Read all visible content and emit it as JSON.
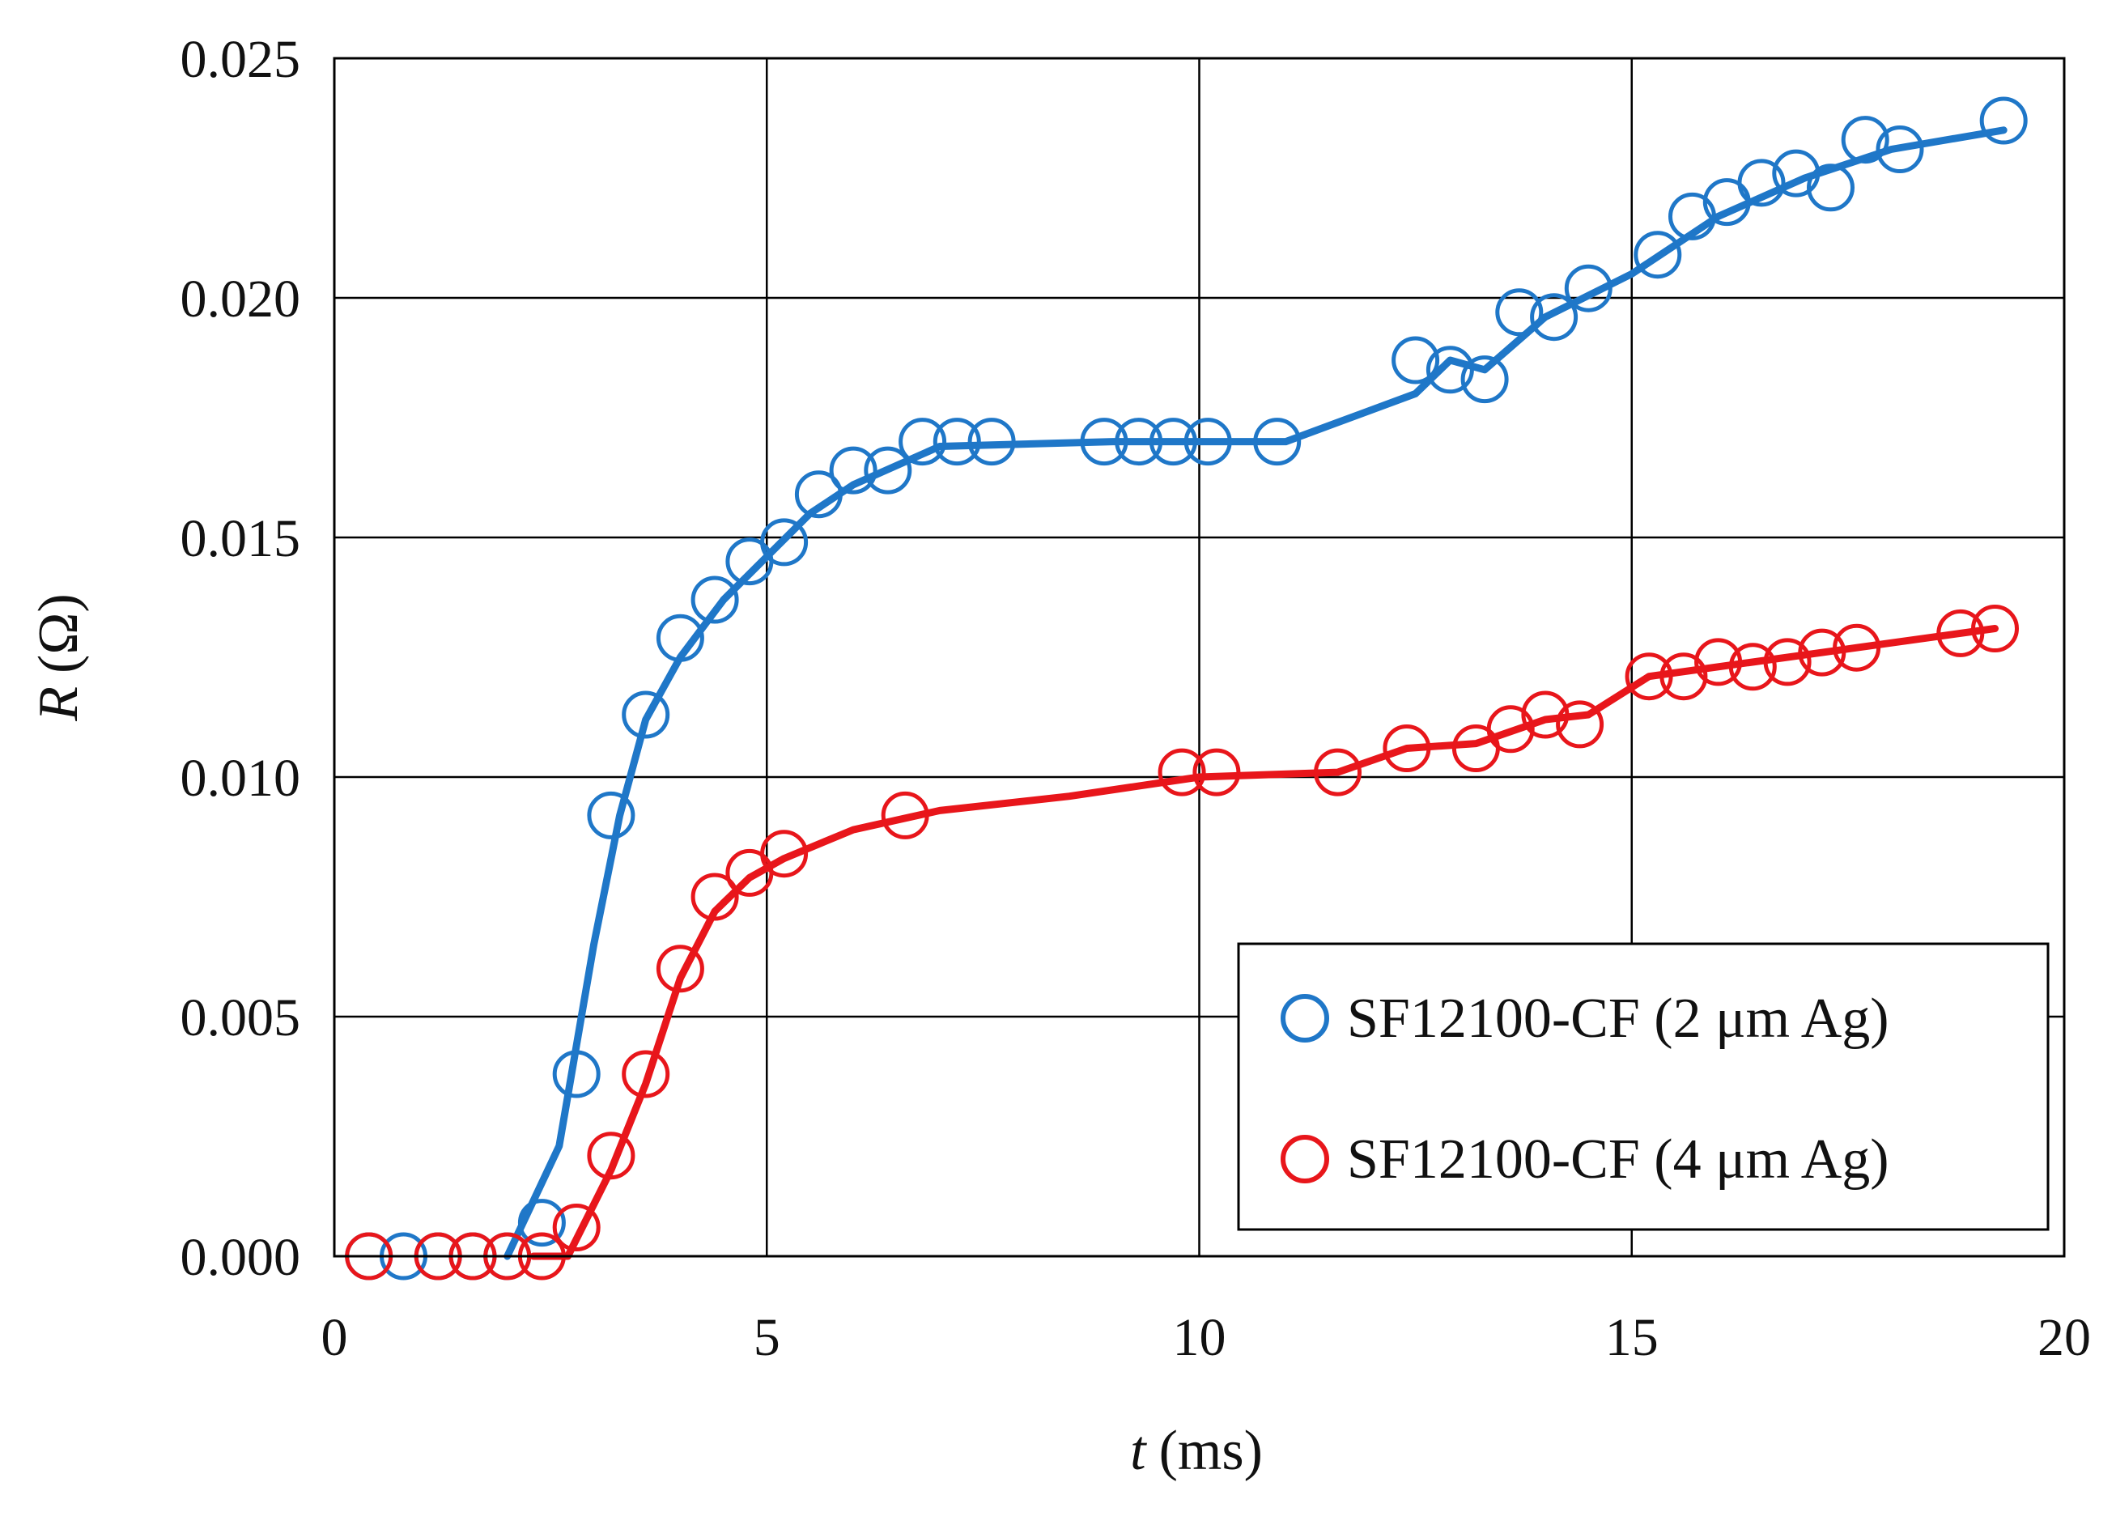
{
  "chart_data": {
    "type": "scatter",
    "title": "",
    "xlabel": {
      "var": "t",
      "unit": "(ms)"
    },
    "ylabel": {
      "var": "R",
      "unit": "(Ω)"
    },
    "xlim": [
      0,
      20
    ],
    "ylim": [
      0,
      0.025
    ],
    "x_ticks": [
      "0",
      "5",
      "10",
      "15",
      "20"
    ],
    "y_ticks": [
      "0.000",
      "0.005",
      "0.010",
      "0.015",
      "0.020",
      "0.025"
    ],
    "grid": true,
    "legend_position": "bottom-right",
    "series": [
      {
        "name": "SF12100-CF (2 μm Ag)",
        "color": "#1f77c8",
        "x": [
          0.4,
          0.8,
          1.2,
          1.6,
          2.0,
          2.4,
          2.8,
          3.2,
          3.6,
          4.0,
          4.4,
          4.8,
          5.2,
          5.6,
          6.0,
          6.4,
          6.8,
          7.2,
          7.6,
          8.9,
          9.3,
          9.7,
          10.1,
          10.9,
          12.5,
          12.9,
          13.3,
          13.7,
          14.1,
          14.5,
          15.3,
          15.7,
          16.1,
          16.5,
          16.9,
          17.3,
          17.7,
          18.1,
          19.3
        ],
        "y": [
          0.0,
          0.0,
          0.0,
          0.0,
          0.0,
          0.0007,
          0.0038,
          0.0092,
          0.0113,
          0.0129,
          0.0137,
          0.0145,
          0.0149,
          0.0159,
          0.0164,
          0.0164,
          0.017,
          0.017,
          0.017,
          0.017,
          0.017,
          0.017,
          0.017,
          0.017,
          0.0187,
          0.0185,
          0.0183,
          0.0197,
          0.0196,
          0.0202,
          0.0209,
          0.0217,
          0.022,
          0.0224,
          0.0226,
          0.0223,
          0.0233,
          0.0231,
          0.0237
        ],
        "fit_x": [
          2.0,
          2.6,
          3.0,
          3.3,
          3.6,
          4.0,
          4.5,
          5.0,
          5.5,
          6.0,
          7.0,
          9.0,
          11.0,
          12.5,
          12.9,
          13.3,
          14.0,
          15.0,
          16.0,
          17.0,
          18.0,
          19.3
        ],
        "fit_y": [
          0.0,
          0.0023,
          0.0065,
          0.0092,
          0.0112,
          0.0125,
          0.0137,
          0.0146,
          0.0155,
          0.0161,
          0.0169,
          0.017,
          0.017,
          0.018,
          0.0187,
          0.0185,
          0.0196,
          0.0205,
          0.0217,
          0.0225,
          0.0231,
          0.0235
        ]
      },
      {
        "name": "SF12100-CF (4 μm Ag)",
        "color": "#e8161b",
        "x": [
          0.4,
          1.2,
          1.6,
          2.0,
          2.4,
          2.8,
          3.2,
          3.6,
          4.0,
          4.4,
          4.8,
          5.2,
          6.6,
          9.8,
          10.2,
          11.6,
          12.4,
          13.2,
          13.6,
          14.0,
          14.4,
          15.2,
          15.6,
          16.0,
          16.4,
          16.8,
          17.2,
          17.6,
          18.8,
          19.2
        ],
        "y": [
          0.0,
          0.0,
          0.0,
          0.0,
          0.0,
          0.0006,
          0.0021,
          0.0038,
          0.006,
          0.0075,
          0.008,
          0.0084,
          0.0092,
          0.0101,
          0.0101,
          0.0101,
          0.0106,
          0.0106,
          0.011,
          0.0113,
          0.0111,
          0.0121,
          0.0121,
          0.0124,
          0.0123,
          0.0124,
          0.0126,
          0.0127,
          0.013,
          0.0131
        ],
        "fit_x": [
          2.3,
          2.7,
          3.2,
          3.6,
          4.0,
          4.4,
          4.8,
          5.2,
          6.0,
          7.0,
          8.5,
          10.0,
          11.6,
          12.4,
          13.2,
          14.0,
          14.5,
          15.2,
          16.0,
          17.6,
          19.2
        ],
        "fit_y": [
          0.0,
          0.0,
          0.0018,
          0.0036,
          0.0058,
          0.0072,
          0.0079,
          0.0083,
          0.0089,
          0.0093,
          0.0096,
          0.01,
          0.0101,
          0.0106,
          0.0107,
          0.0112,
          0.0113,
          0.0121,
          0.0123,
          0.0127,
          0.0131
        ]
      }
    ]
  }
}
